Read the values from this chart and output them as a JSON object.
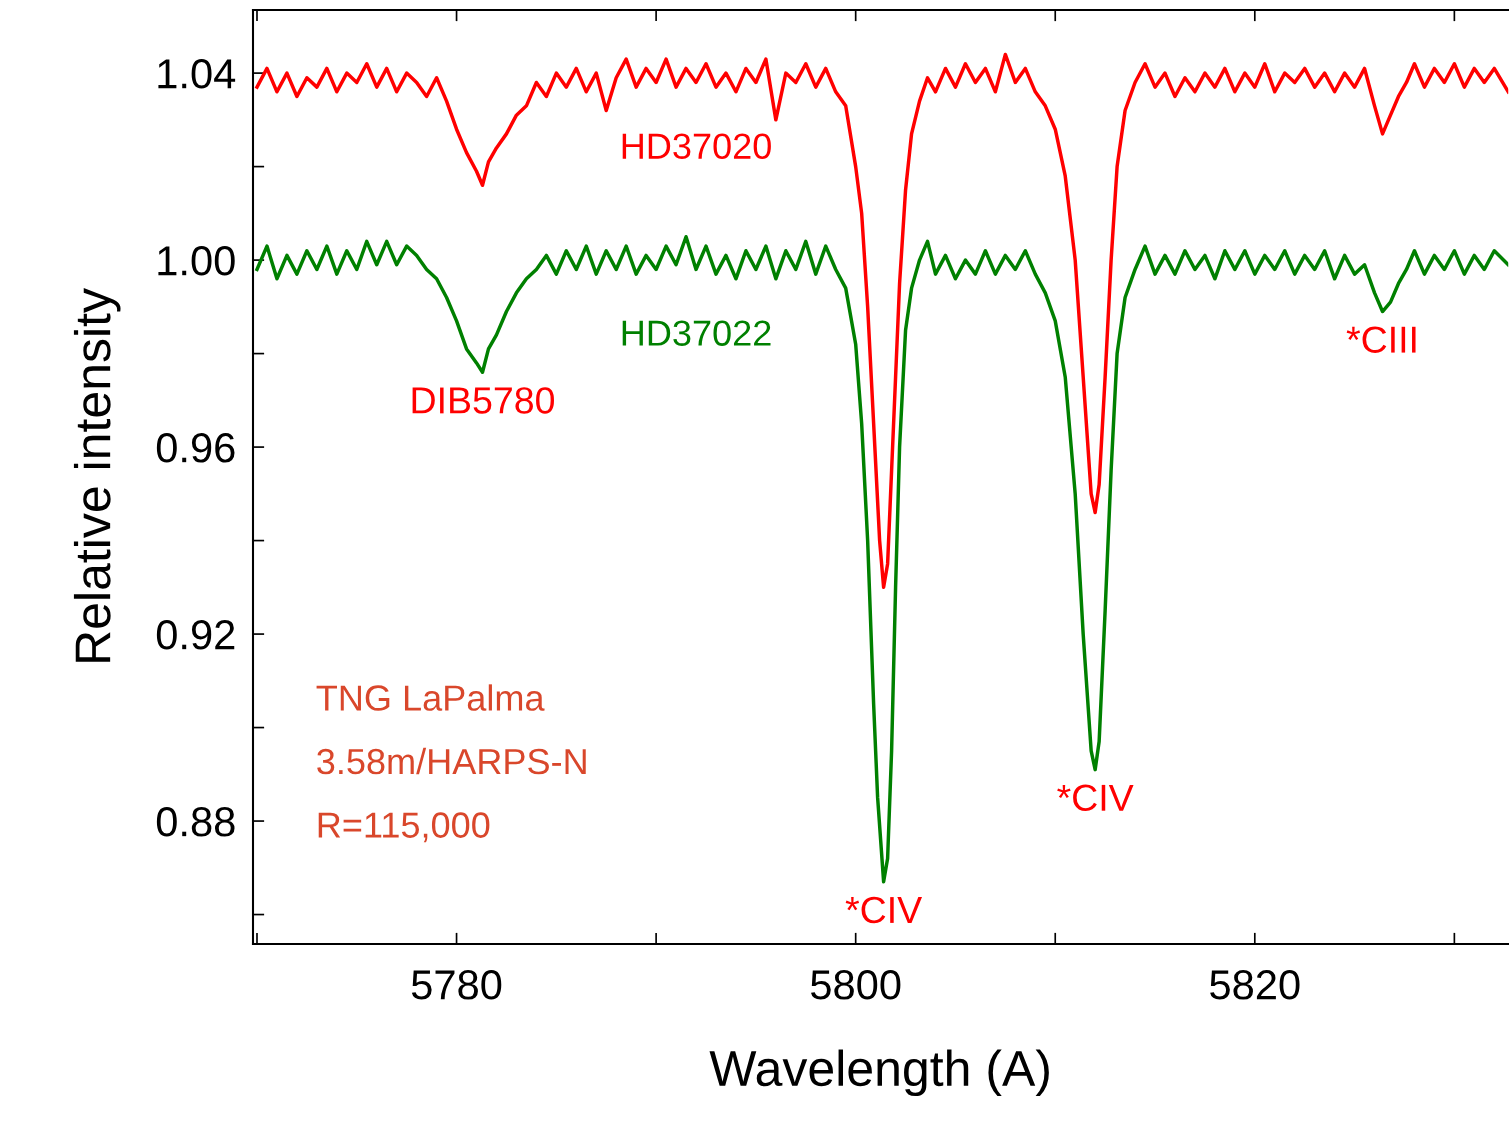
{
  "chart_data": {
    "type": "line",
    "xlabel": "Wavelength (A)",
    "ylabel": "Relative intensity",
    "xlim": [
      5769.8,
      5832.7
    ],
    "ylim": [
      0.8537,
      1.0535
    ],
    "xticks": [
      {
        "value": 5770,
        "label": null
      },
      5780,
      {
        "value": 5790,
        "label": null
      },
      5800,
      {
        "value": 5810,
        "label": null
      },
      5820,
      {
        "value": 5830,
        "label": null
      }
    ],
    "yticks": [
      {
        "value": 0.86,
        "label": null
      },
      {
        "value": 0.88,
        "label": "0.88"
      },
      {
        "value": 0.9,
        "label": null
      },
      {
        "value": 0.92,
        "label": "0.92"
      },
      {
        "value": 0.94,
        "label": null
      },
      {
        "value": 0.96,
        "label": "0.96"
      },
      {
        "value": 0.98,
        "label": null
      },
      {
        "value": 1.0,
        "label": "1.00"
      },
      {
        "value": 1.02,
        "label": null
      },
      {
        "value": 1.04,
        "label": "1.04"
      }
    ],
    "grid": false,
    "legend": false,
    "marker": "none",
    "line_style": "solid",
    "series": [
      {
        "name": "HD37020",
        "color": "#ff0000",
        "x": [
          5770.0,
          5770.5,
          5771.0,
          5771.5,
          5772.0,
          5772.5,
          5773.0,
          5773.5,
          5774.0,
          5774.5,
          5775.0,
          5775.5,
          5776.0,
          5776.5,
          5777.0,
          5777.5,
          5778.0,
          5778.5,
          5779.0,
          5779.5,
          5780.0,
          5780.5,
          5781.0,
          5781.3,
          5781.6,
          5782.0,
          5782.5,
          5783.0,
          5783.5,
          5784.0,
          5784.5,
          5785.0,
          5785.5,
          5786.0,
          5786.5,
          5787.0,
          5787.5,
          5788.0,
          5788.5,
          5789.0,
          5789.5,
          5790.0,
          5790.5,
          5791.0,
          5791.5,
          5792.0,
          5792.5,
          5793.0,
          5793.5,
          5794.0,
          5794.5,
          5795.0,
          5795.5,
          5796.0,
          5796.5,
          5797.0,
          5797.5,
          5798.0,
          5798.5,
          5799.0,
          5799.5,
          5800.0,
          5800.3,
          5800.6,
          5800.9,
          5801.2,
          5801.4,
          5801.6,
          5801.8,
          5802.0,
          5802.2,
          5802.5,
          5802.8,
          5803.2,
          5803.6,
          5804.0,
          5804.5,
          5805.0,
          5805.5,
          5806.0,
          5806.5,
          5807.0,
          5807.5,
          5808.0,
          5808.5,
          5809.0,
          5809.5,
          5810.0,
          5810.5,
          5811.0,
          5811.4,
          5811.8,
          5812.0,
          5812.2,
          5812.5,
          5812.8,
          5813.1,
          5813.5,
          5814.0,
          5814.5,
          5815.0,
          5815.5,
          5816.0,
          5816.5,
          5817.0,
          5817.5,
          5818.0,
          5818.5,
          5819.0,
          5819.5,
          5820.0,
          5820.5,
          5821.0,
          5821.5,
          5822.0,
          5822.5,
          5823.0,
          5823.5,
          5824.0,
          5824.5,
          5825.0,
          5825.5,
          5826.0,
          5826.4,
          5826.8,
          5827.2,
          5827.6,
          5828.0,
          5828.5,
          5829.0,
          5829.5,
          5830.0,
          5830.5,
          5831.0,
          5831.5,
          5832.0,
          5832.7
        ],
        "values": [
          1.037,
          1.041,
          1.036,
          1.04,
          1.035,
          1.039,
          1.037,
          1.041,
          1.036,
          1.04,
          1.038,
          1.042,
          1.037,
          1.041,
          1.036,
          1.04,
          1.038,
          1.035,
          1.039,
          1.034,
          1.028,
          1.023,
          1.019,
          1.016,
          1.021,
          1.024,
          1.027,
          1.031,
          1.033,
          1.038,
          1.035,
          1.04,
          1.037,
          1.041,
          1.036,
          1.04,
          1.032,
          1.039,
          1.043,
          1.037,
          1.041,
          1.038,
          1.043,
          1.037,
          1.041,
          1.038,
          1.042,
          1.037,
          1.04,
          1.036,
          1.041,
          1.038,
          1.043,
          1.03,
          1.04,
          1.038,
          1.042,
          1.037,
          1.041,
          1.036,
          1.033,
          1.02,
          1.01,
          0.99,
          0.965,
          0.94,
          0.93,
          0.935,
          0.955,
          0.975,
          0.995,
          1.015,
          1.027,
          1.034,
          1.039,
          1.036,
          1.041,
          1.037,
          1.042,
          1.038,
          1.041,
          1.036,
          1.044,
          1.038,
          1.041,
          1.036,
          1.033,
          1.028,
          1.018,
          1.0,
          0.975,
          0.95,
          0.946,
          0.952,
          0.975,
          1.0,
          1.02,
          1.032,
          1.038,
          1.042,
          1.037,
          1.04,
          1.035,
          1.039,
          1.036,
          1.04,
          1.037,
          1.041,
          1.036,
          1.04,
          1.037,
          1.042,
          1.036,
          1.04,
          1.038,
          1.041,
          1.037,
          1.04,
          1.036,
          1.04,
          1.037,
          1.041,
          1.033,
          1.027,
          1.031,
          1.035,
          1.038,
          1.042,
          1.037,
          1.041,
          1.038,
          1.042,
          1.037,
          1.041,
          1.038,
          1.041,
          1.036
        ]
      },
      {
        "name": "HD37022",
        "color": "#008000",
        "x": [
          5770.0,
          5770.5,
          5771.0,
          5771.5,
          5772.0,
          5772.5,
          5773.0,
          5773.5,
          5774.0,
          5774.5,
          5775.0,
          5775.5,
          5776.0,
          5776.5,
          5777.0,
          5777.5,
          5778.0,
          5778.5,
          5779.0,
          5779.5,
          5780.0,
          5780.5,
          5781.0,
          5781.3,
          5781.6,
          5782.0,
          5782.5,
          5783.0,
          5783.5,
          5784.0,
          5784.5,
          5785.0,
          5785.5,
          5786.0,
          5786.5,
          5787.0,
          5787.5,
          5788.0,
          5788.5,
          5789.0,
          5789.5,
          5790.0,
          5790.5,
          5791.0,
          5791.5,
          5792.0,
          5792.5,
          5793.0,
          5793.5,
          5794.0,
          5794.5,
          5795.0,
          5795.5,
          5796.0,
          5796.5,
          5797.0,
          5797.5,
          5798.0,
          5798.5,
          5799.0,
          5799.5,
          5800.0,
          5800.3,
          5800.6,
          5800.9,
          5801.1,
          5801.4,
          5801.6,
          5801.8,
          5802.0,
          5802.2,
          5802.5,
          5802.8,
          5803.2,
          5803.6,
          5804.0,
          5804.5,
          5805.0,
          5805.5,
          5806.0,
          5806.5,
          5807.0,
          5807.5,
          5808.0,
          5808.5,
          5809.0,
          5809.5,
          5810.0,
          5810.5,
          5811.0,
          5811.4,
          5811.8,
          5812.0,
          5812.2,
          5812.5,
          5812.8,
          5813.1,
          5813.5,
          5814.0,
          5814.5,
          5815.0,
          5815.5,
          5816.0,
          5816.5,
          5817.0,
          5817.5,
          5818.0,
          5818.5,
          5819.0,
          5819.5,
          5820.0,
          5820.5,
          5821.0,
          5821.5,
          5822.0,
          5822.5,
          5823.0,
          5823.5,
          5824.0,
          5824.5,
          5825.0,
          5825.5,
          5826.0,
          5826.4,
          5826.8,
          5827.2,
          5827.6,
          5828.0,
          5828.5,
          5829.0,
          5829.5,
          5830.0,
          5830.5,
          5831.0,
          5831.5,
          5832.0,
          5832.7
        ],
        "values": [
          0.998,
          1.003,
          0.996,
          1.001,
          0.997,
          1.002,
          0.998,
          1.003,
          0.997,
          1.002,
          0.998,
          1.004,
          0.999,
          1.004,
          0.999,
          1.003,
          1.001,
          0.998,
          0.996,
          0.992,
          0.987,
          0.981,
          0.978,
          0.976,
          0.981,
          0.984,
          0.989,
          0.993,
          0.996,
          0.998,
          1.001,
          0.997,
          1.002,
          0.998,
          1.003,
          0.997,
          1.002,
          0.998,
          1.003,
          0.997,
          1.001,
          0.998,
          1.003,
          0.999,
          1.005,
          0.998,
          1.003,
          0.997,
          1.001,
          0.996,
          1.002,
          0.998,
          1.003,
          0.996,
          1.002,
          0.998,
          1.004,
          0.997,
          1.003,
          0.998,
          0.994,
          0.982,
          0.965,
          0.94,
          0.905,
          0.885,
          0.867,
          0.872,
          0.895,
          0.93,
          0.96,
          0.985,
          0.994,
          1.0,
          1.004,
          0.997,
          1.001,
          0.996,
          1.0,
          0.997,
          1.002,
          0.997,
          1.001,
          0.998,
          1.002,
          0.997,
          0.993,
          0.987,
          0.975,
          0.95,
          0.92,
          0.895,
          0.891,
          0.897,
          0.925,
          0.955,
          0.98,
          0.992,
          0.998,
          1.003,
          0.997,
          1.001,
          0.997,
          1.002,
          0.998,
          1.001,
          0.996,
          1.002,
          0.998,
          1.002,
          0.997,
          1.001,
          0.998,
          1.002,
          0.997,
          1.001,
          0.998,
          1.002,
          0.996,
          1.001,
          0.997,
          0.999,
          0.993,
          0.989,
          0.991,
          0.995,
          0.998,
          1.002,
          0.997,
          1.001,
          0.998,
          1.002,
          0.997,
          1.001,
          0.998,
          1.002,
          0.999
        ]
      }
    ],
    "annotations": [
      {
        "text": "DIB5780",
        "x": 5781.3,
        "y": 0.976
      },
      {
        "text": "*CIV",
        "x": 5801.4,
        "y": 0.867
      },
      {
        "text": "*CIV",
        "x": 5812.0,
        "y": 0.891
      },
      {
        "text": "*CIII",
        "x": 5826.4,
        "y": 0.989
      },
      "TNG LaPalma",
      "3.58m/HARPS-N",
      "R=115,000"
    ]
  }
}
